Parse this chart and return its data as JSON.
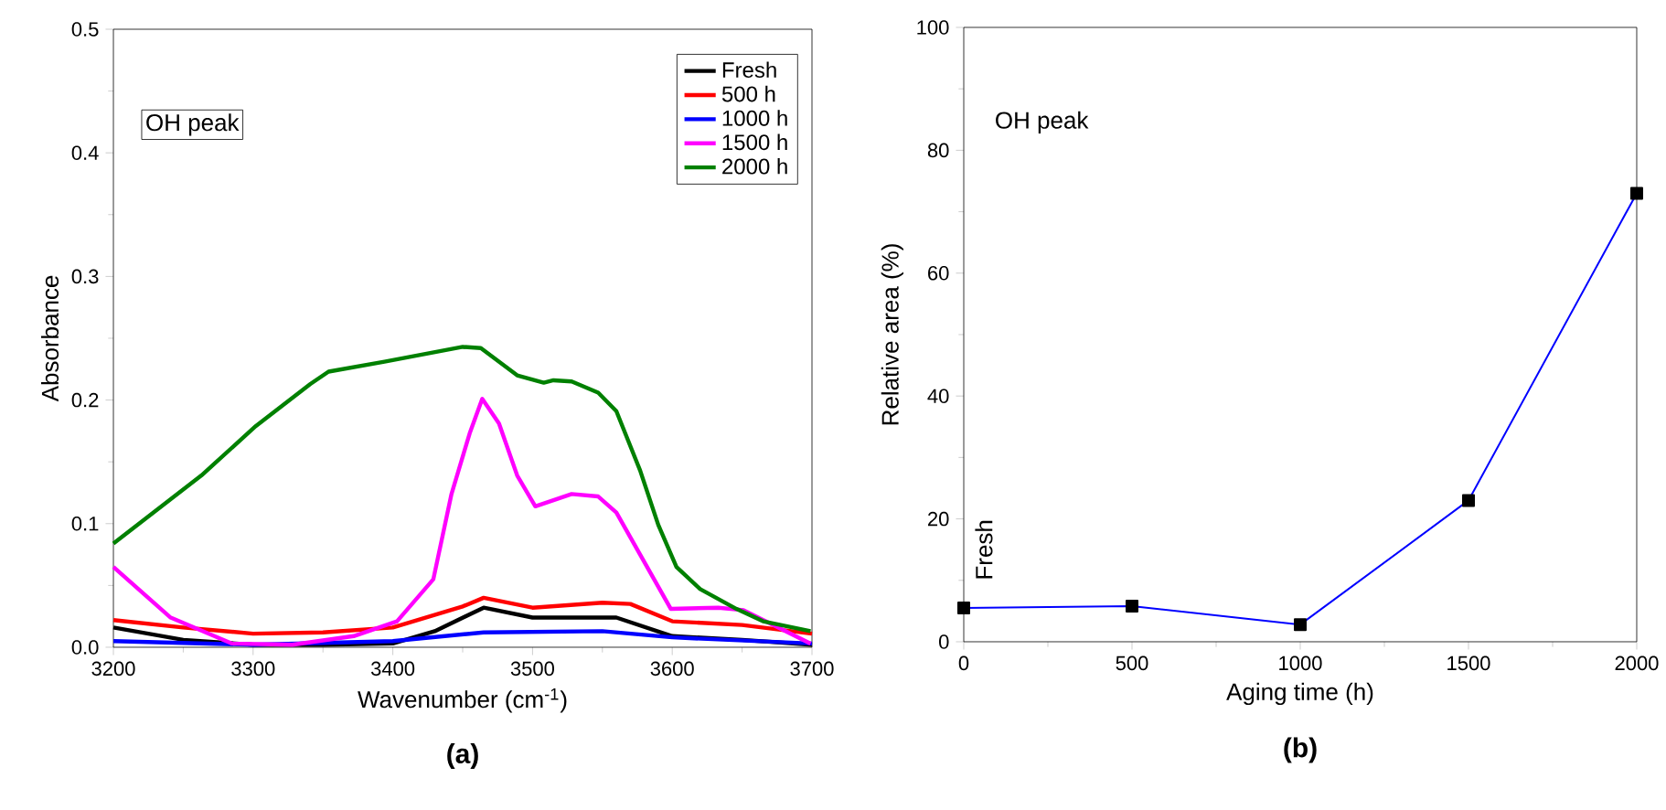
{
  "chart_data": [
    {
      "type": "line",
      "xlabel": "Wavenumber (cm$^{-1}$)",
      "ylabel": "Absorbance",
      "annotations": [
        "OH peak",
        "(a)"
      ],
      "xlim": [
        3200,
        3700
      ],
      "xticks": [
        3200,
        3300,
        3400,
        3500,
        3600,
        3700
      ],
      "ylim": [
        0,
        0.5
      ],
      "yticks": [
        {
          "value": 0,
          "label": "0.0"
        },
        0.1,
        0.2,
        0.3,
        0.4,
        0.5
      ],
      "legend": "top right",
      "line_style": "solid",
      "series": [
        {
          "name": "Fresh",
          "color": "#000000",
          "x": [
            3200,
            3250,
            3300,
            3350,
            3400,
            3430,
            3465,
            3500,
            3530,
            3560,
            3600,
            3650,
            3700
          ],
          "values": [
            0.016,
            0.006,
            0.002,
            0.002,
            0.003,
            0.013,
            0.032,
            0.024,
            0.024,
            0.024,
            0.009,
            0.006,
            0.002
          ]
        },
        {
          "name": "500 h",
          "color": "#ff0000",
          "x": [
            3200,
            3250,
            3300,
            3350,
            3400,
            3450,
            3465,
            3500,
            3550,
            3570,
            3600,
            3650,
            3700
          ],
          "values": [
            0.022,
            0.016,
            0.011,
            0.012,
            0.016,
            0.033,
            0.04,
            0.032,
            0.036,
            0.035,
            0.021,
            0.018,
            0.011
          ]
        },
        {
          "name": "1000 h",
          "color": "#0000ff",
          "x": [
            3200,
            3300,
            3400,
            3465,
            3550,
            3600,
            3700
          ],
          "values": [
            0.005,
            0.002,
            0.005,
            0.012,
            0.013,
            0.008,
            0.003
          ]
        },
        {
          "name": "1500 h",
          "color": "#ff00ff",
          "x": [
            3200,
            3241,
            3285,
            3328,
            3372,
            3403,
            3429,
            3442,
            3455,
            3464,
            3476,
            3489,
            3502,
            3528,
            3547,
            3560,
            3577,
            3599,
            3633,
            3651,
            3699
          ],
          "values": [
            0.065,
            0.024,
            0.003,
            0.002,
            0.009,
            0.021,
            0.055,
            0.124,
            0.173,
            0.201,
            0.181,
            0.139,
            0.114,
            0.124,
            0.122,
            0.109,
            0.075,
            0.031,
            0.032,
            0.03,
            0.003
          ]
        },
        {
          "name": "2000 h",
          "color": "#008000",
          "x": [
            3200,
            3263,
            3302,
            3341,
            3354,
            3394,
            3450,
            3463,
            3489,
            3508,
            3515,
            3528,
            3547,
            3560,
            3577,
            3590,
            3603,
            3620,
            3646,
            3665,
            3699
          ],
          "values": [
            0.084,
            0.139,
            0.179,
            0.213,
            0.223,
            0.231,
            0.243,
            0.242,
            0.22,
            0.214,
            0.216,
            0.215,
            0.206,
            0.191,
            0.143,
            0.099,
            0.065,
            0.047,
            0.031,
            0.021,
            0.013
          ]
        }
      ]
    },
    {
      "type": "line",
      "xlabel": "Aging time (h)",
      "ylabel": "Relative area (%)",
      "annotations": [
        "OH peak",
        "(b)",
        {
          "text": "Fresh",
          "x": 0,
          "y": 5.5
        }
      ],
      "xlim": [
        0,
        2000
      ],
      "xticks": [
        0,
        500,
        1000,
        1500,
        2000
      ],
      "ylim": [
        0,
        100
      ],
      "yticks": [
        0,
        20,
        40,
        60,
        80,
        100
      ],
      "marker": "square",
      "line_style": "solid",
      "series": [
        {
          "color": "#0000ff",
          "x": [
            0,
            500,
            1000,
            1500,
            2000
          ],
          "values": [
            5.5,
            5.8,
            2.8,
            23,
            73
          ]
        }
      ]
    }
  ]
}
